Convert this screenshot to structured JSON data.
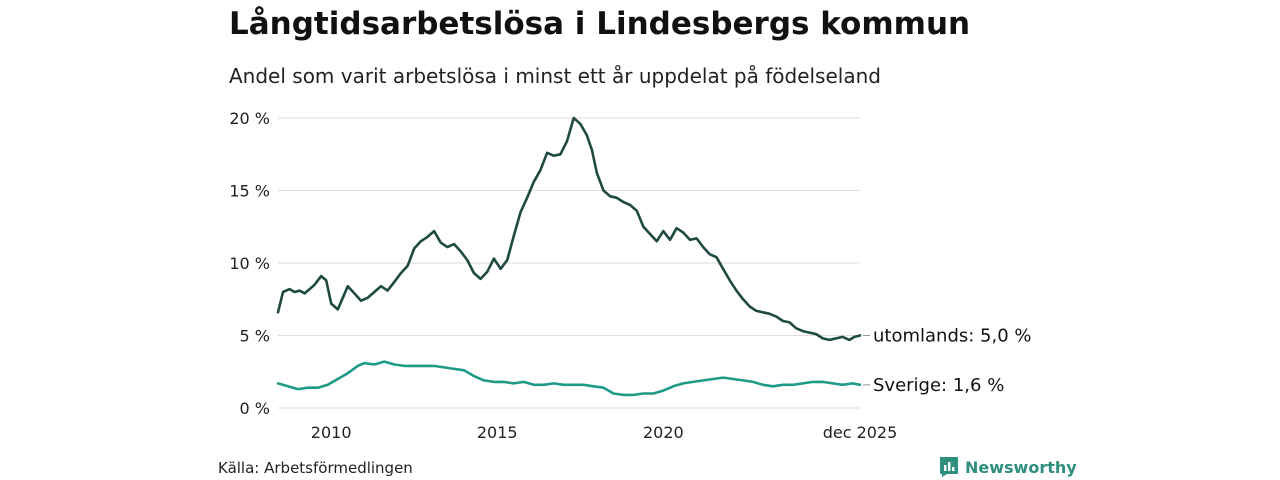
{
  "header": {
    "title": "Långtidsarbetslösa i Lindesbergs kommun",
    "subtitle": "Andel som varit arbetslösa i minst ett år uppdelat på födelseland"
  },
  "footer": {
    "source": "Källa: Arbetsförmedlingen",
    "brand": "Newsworthy"
  },
  "colors": {
    "utomlands": "#1f4a42",
    "sverige": "#1e9a88",
    "grid": "#dddddd",
    "brand": "#2f8f7f"
  },
  "chart_data": {
    "type": "line",
    "title": "Långtidsarbetslösa i Lindesbergs kommun",
    "subtitle": "Andel som varit arbetslösa i minst ett år uppdelat på födelseland",
    "xlabel": "",
    "ylabel": "",
    "xlim": [
      2008.4,
      2025.92
    ],
    "ylim": [
      0,
      20
    ],
    "y_ticks": [
      {
        "value": 0,
        "label": "0 %"
      },
      {
        "value": 5,
        "label": "5 %"
      },
      {
        "value": 10,
        "label": "10 %"
      },
      {
        "value": 15,
        "label": "15 %"
      },
      {
        "value": 20,
        "label": "20 %"
      }
    ],
    "x_ticks": [
      {
        "value": 2010,
        "label": "2010"
      },
      {
        "value": 2015,
        "label": "2015"
      },
      {
        "value": 2020,
        "label": "2020"
      },
      {
        "value": 2025.92,
        "label": "dec 2025"
      }
    ],
    "grid": true,
    "series": [
      {
        "name": "utomlands",
        "end_label": "utomlands: 5,0 %",
        "x": [
          2008.4,
          2008.55,
          2008.75,
          2008.9,
          2009.05,
          2009.2,
          2009.35,
          2009.5,
          2009.7,
          2009.85,
          2010.0,
          2010.2,
          2010.35,
          2010.5,
          2010.7,
          2010.9,
          2011.1,
          2011.3,
          2011.5,
          2011.7,
          2011.9,
          2012.1,
          2012.3,
          2012.5,
          2012.7,
          2012.9,
          2013.1,
          2013.3,
          2013.5,
          2013.7,
          2013.9,
          2014.1,
          2014.3,
          2014.5,
          2014.7,
          2014.9,
          2015.1,
          2015.3,
          2015.5,
          2015.7,
          2015.9,
          2016.1,
          2016.3,
          2016.5,
          2016.7,
          2016.9,
          2017.1,
          2017.3,
          2017.5,
          2017.7,
          2017.85,
          2018.0,
          2018.2,
          2018.4,
          2018.6,
          2018.8,
          2019.0,
          2019.2,
          2019.4,
          2019.6,
          2019.8,
          2020.0,
          2020.2,
          2020.4,
          2020.6,
          2020.8,
          2021.0,
          2021.2,
          2021.4,
          2021.6,
          2021.8,
          2022.0,
          2022.2,
          2022.4,
          2022.6,
          2022.8,
          2023.0,
          2023.2,
          2023.4,
          2023.6,
          2023.8,
          2024.0,
          2024.2,
          2024.4,
          2024.6,
          2024.8,
          2025.0,
          2025.2,
          2025.4,
          2025.6,
          2025.75,
          2025.92
        ],
        "values": [
          6.6,
          8.0,
          8.2,
          8.0,
          8.1,
          7.9,
          8.2,
          8.5,
          9.1,
          8.8,
          7.2,
          6.8,
          7.6,
          8.4,
          7.9,
          7.4,
          7.6,
          8.0,
          8.4,
          8.1,
          8.7,
          9.3,
          9.8,
          11.0,
          11.5,
          11.8,
          12.2,
          11.4,
          11.1,
          11.3,
          10.8,
          10.2,
          9.3,
          8.9,
          9.4,
          10.3,
          9.6,
          10.2,
          11.9,
          13.5,
          14.5,
          15.6,
          16.4,
          17.6,
          17.4,
          17.5,
          18.4,
          20.0,
          19.6,
          18.8,
          17.8,
          16.2,
          15.0,
          14.6,
          14.5,
          14.2,
          14.0,
          13.6,
          12.5,
          12.0,
          11.5,
          12.2,
          11.6,
          12.4,
          12.1,
          11.6,
          11.7,
          11.1,
          10.6,
          10.4,
          9.6,
          8.8,
          8.1,
          7.5,
          7.0,
          6.7,
          6.6,
          6.5,
          6.3,
          6.0,
          5.9,
          5.5,
          5.3,
          5.2,
          5.1,
          4.8,
          4.7,
          4.8,
          4.9,
          4.7,
          4.9,
          5.0
        ]
      },
      {
        "name": "Sverige",
        "end_label": "Sverige: 1,6 %",
        "x": [
          2008.4,
          2008.7,
          2009.0,
          2009.3,
          2009.6,
          2009.9,
          2010.2,
          2010.5,
          2010.8,
          2011.0,
          2011.3,
          2011.6,
          2011.9,
          2012.2,
          2012.5,
          2012.8,
          2013.1,
          2013.4,
          2013.7,
          2014.0,
          2014.3,
          2014.6,
          2014.9,
          2015.2,
          2015.5,
          2015.8,
          2016.1,
          2016.4,
          2016.7,
          2017.0,
          2017.3,
          2017.6,
          2017.9,
          2018.2,
          2018.5,
          2018.8,
          2019.1,
          2019.4,
          2019.7,
          2020.0,
          2020.3,
          2020.6,
          2020.9,
          2021.2,
          2021.5,
          2021.8,
          2022.1,
          2022.4,
          2022.7,
          2023.0,
          2023.3,
          2023.6,
          2023.9,
          2024.2,
          2024.5,
          2024.8,
          2025.1,
          2025.4,
          2025.7,
          2025.92
        ],
        "values": [
          1.7,
          1.5,
          1.3,
          1.4,
          1.4,
          1.6,
          2.0,
          2.4,
          2.9,
          3.1,
          3.0,
          3.2,
          3.0,
          2.9,
          2.9,
          2.9,
          2.9,
          2.8,
          2.7,
          2.6,
          2.2,
          1.9,
          1.8,
          1.8,
          1.7,
          1.8,
          1.6,
          1.6,
          1.7,
          1.6,
          1.6,
          1.6,
          1.5,
          1.4,
          1.0,
          0.9,
          0.9,
          1.0,
          1.0,
          1.2,
          1.5,
          1.7,
          1.8,
          1.9,
          2.0,
          2.1,
          2.0,
          1.9,
          1.8,
          1.6,
          1.5,
          1.6,
          1.6,
          1.7,
          1.8,
          1.8,
          1.7,
          1.6,
          1.7,
          1.6
        ]
      }
    ]
  }
}
